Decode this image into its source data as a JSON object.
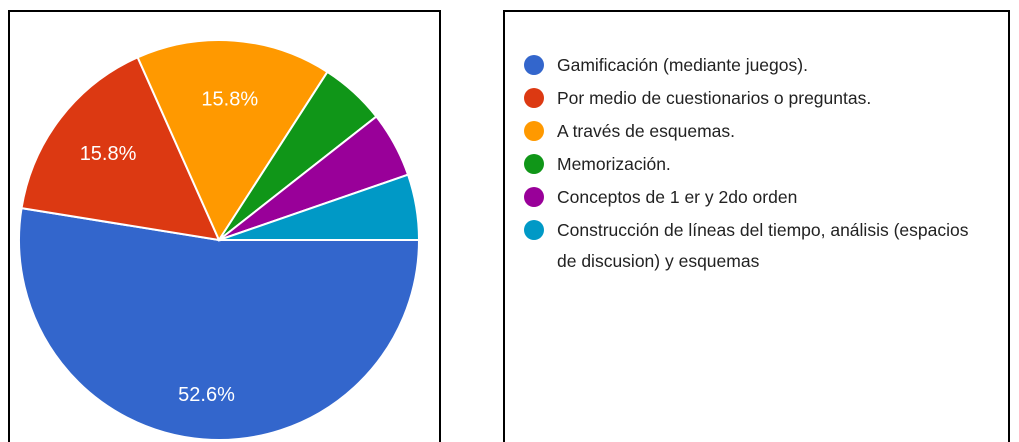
{
  "chart_data": {
    "type": "pie",
    "categories": [
      "Gamificación (mediante juegos).",
      "Por medio de cuestionarios o preguntas.",
      "A través de esquemas.",
      "Memorización.",
      "Conceptos de 1 er y 2do orden",
      "Construcción de líneas del tiempo, análisis (espacios de discusion) y esquemas"
    ],
    "values": [
      52.6,
      15.8,
      15.8,
      5.3,
      5.3,
      5.3
    ],
    "value_labels": [
      "52.6%",
      "15.8%",
      "15.8%",
      null,
      null,
      null
    ],
    "colors": [
      "#3366cc",
      "#dc3912",
      "#ff9900",
      "#109618",
      "#990099",
      "#0099c6"
    ]
  }
}
